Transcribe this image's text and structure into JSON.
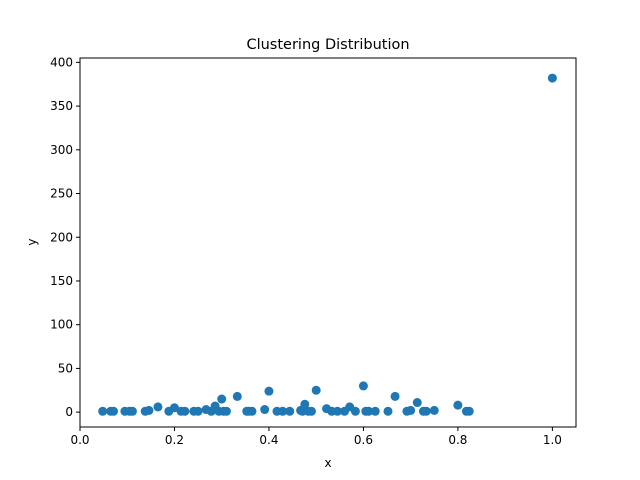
{
  "chart_data": {
    "type": "scatter",
    "title": "Clustering Distribution",
    "xlabel": "x",
    "ylabel": "y",
    "xlim": [
      0.0,
      1.05
    ],
    "ylim": [
      -17,
      405
    ],
    "xticks": [
      0.0,
      0.2,
      0.4,
      0.6,
      0.8,
      1.0
    ],
    "xtick_labels": [
      "0.0",
      "0.2",
      "0.4",
      "0.6",
      "0.8",
      "1.0"
    ],
    "yticks": [
      0,
      50,
      100,
      150,
      200,
      250,
      300,
      350,
      400
    ],
    "ytick_labels": [
      "0",
      "50",
      "100",
      "150",
      "200",
      "250",
      "300",
      "350",
      "400"
    ],
    "grid": false,
    "marker_color": "#1f77b4",
    "points": [
      {
        "x": 0.048,
        "y": 1
      },
      {
        "x": 0.065,
        "y": 1
      },
      {
        "x": 0.071,
        "y": 1
      },
      {
        "x": 0.095,
        "y": 1
      },
      {
        "x": 0.105,
        "y": 1
      },
      {
        "x": 0.111,
        "y": 1
      },
      {
        "x": 0.138,
        "y": 1
      },
      {
        "x": 0.146,
        "y": 2
      },
      {
        "x": 0.165,
        "y": 6
      },
      {
        "x": 0.188,
        "y": 1
      },
      {
        "x": 0.2,
        "y": 5
      },
      {
        "x": 0.214,
        "y": 1
      },
      {
        "x": 0.222,
        "y": 1
      },
      {
        "x": 0.241,
        "y": 1
      },
      {
        "x": 0.25,
        "y": 1
      },
      {
        "x": 0.267,
        "y": 3
      },
      {
        "x": 0.278,
        "y": 1
      },
      {
        "x": 0.286,
        "y": 7
      },
      {
        "x": 0.294,
        "y": 1
      },
      {
        "x": 0.3,
        "y": 15
      },
      {
        "x": 0.304,
        "y": 1
      },
      {
        "x": 0.31,
        "y": 1
      },
      {
        "x": 0.333,
        "y": 18
      },
      {
        "x": 0.353,
        "y": 1
      },
      {
        "x": 0.357,
        "y": 1
      },
      {
        "x": 0.364,
        "y": 1
      },
      {
        "x": 0.391,
        "y": 3
      },
      {
        "x": 0.4,
        "y": 24
      },
      {
        "x": 0.417,
        "y": 1
      },
      {
        "x": 0.429,
        "y": 1
      },
      {
        "x": 0.444,
        "y": 1
      },
      {
        "x": 0.467,
        "y": 2
      },
      {
        "x": 0.471,
        "y": 1
      },
      {
        "x": 0.476,
        "y": 9
      },
      {
        "x": 0.483,
        "y": 1
      },
      {
        "x": 0.49,
        "y": 1
      },
      {
        "x": 0.5,
        "y": 25
      },
      {
        "x": 0.522,
        "y": 4
      },
      {
        "x": 0.533,
        "y": 1
      },
      {
        "x": 0.545,
        "y": 1
      },
      {
        "x": 0.56,
        "y": 1
      },
      {
        "x": 0.571,
        "y": 6
      },
      {
        "x": 0.583,
        "y": 1
      },
      {
        "x": 0.6,
        "y": 30
      },
      {
        "x": 0.605,
        "y": 1
      },
      {
        "x": 0.611,
        "y": 1
      },
      {
        "x": 0.625,
        "y": 1
      },
      {
        "x": 0.652,
        "y": 1
      },
      {
        "x": 0.667,
        "y": 18
      },
      {
        "x": 0.692,
        "y": 1
      },
      {
        "x": 0.7,
        "y": 2
      },
      {
        "x": 0.714,
        "y": 11
      },
      {
        "x": 0.727,
        "y": 1
      },
      {
        "x": 0.733,
        "y": 1
      },
      {
        "x": 0.75,
        "y": 2
      },
      {
        "x": 0.8,
        "y": 8
      },
      {
        "x": 0.818,
        "y": 1
      },
      {
        "x": 0.824,
        "y": 1
      },
      {
        "x": 1.0,
        "y": 382
      }
    ]
  }
}
